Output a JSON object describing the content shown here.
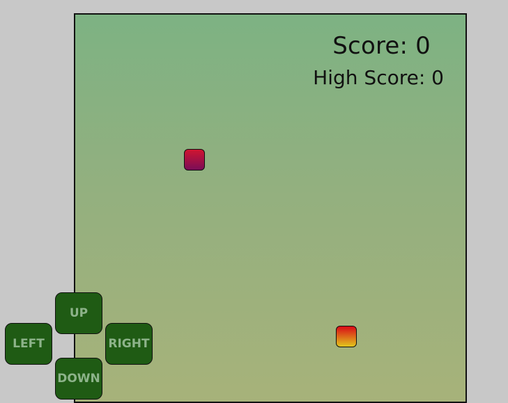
{
  "scoreboard": {
    "score_text": "Score: 0",
    "high_score_text": "High Score: 0"
  },
  "controls": {
    "up_label": "UP",
    "left_label": "LEFT",
    "right_label": "RIGHT",
    "down_label": "DOWN"
  },
  "colors": {
    "page_background": "#c8c8c8",
    "board_gradient_top": "#7db283",
    "board_gradient_bottom": "#a7b27a",
    "button_background": "#1f5b14",
    "button_text": "#8db38a",
    "tile_purple_top": "#cf1530",
    "tile_purple_bottom": "#7a0d57",
    "tile_orange_top": "#d90b17",
    "tile_orange_bottom": "#e1c61d"
  }
}
